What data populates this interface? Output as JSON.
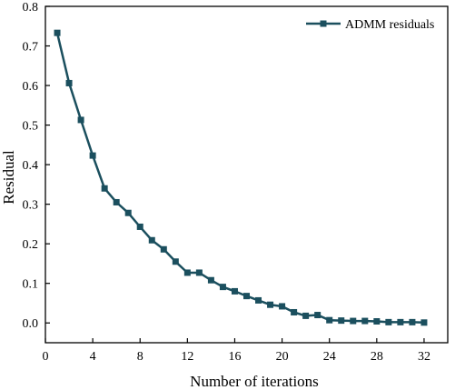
{
  "chart_data": {
    "type": "line",
    "title": "",
    "xlabel": "Number of iterations",
    "ylabel": "Residual",
    "xlim": [
      0,
      34
    ],
    "ylim": [
      -0.05,
      0.8
    ],
    "xticks": [
      0,
      4,
      8,
      12,
      16,
      20,
      24,
      28,
      32
    ],
    "yticks": [
      0.0,
      0.1,
      0.2,
      0.3,
      0.4,
      0.5,
      0.6,
      0.7,
      0.8
    ],
    "ytick_labels": [
      "0.0",
      "0.1",
      "0.2",
      "0.3",
      "0.4",
      "0.5",
      "0.6",
      "0.7",
      "0.8"
    ],
    "legend_position": "top-right",
    "grid": false,
    "series": [
      {
        "name": "ADMM residuals",
        "color": "#1b4f5e",
        "marker": "square",
        "x": [
          1,
          2,
          3,
          4,
          5,
          6,
          7,
          8,
          9,
          10,
          11,
          12,
          13,
          14,
          15,
          16,
          17,
          18,
          19,
          20,
          21,
          22,
          23,
          24,
          25,
          26,
          27,
          28,
          29,
          30,
          31,
          32
        ],
        "y": [
          0.733,
          0.606,
          0.513,
          0.423,
          0.34,
          0.305,
          0.278,
          0.243,
          0.209,
          0.186,
          0.155,
          0.127,
          0.127,
          0.108,
          0.091,
          0.08,
          0.068,
          0.057,
          0.046,
          0.042,
          0.027,
          0.018,
          0.02,
          0.007,
          0.006,
          0.005,
          0.005,
          0.004,
          0.002,
          0.002,
          0.002,
          0.001
        ]
      }
    ]
  }
}
